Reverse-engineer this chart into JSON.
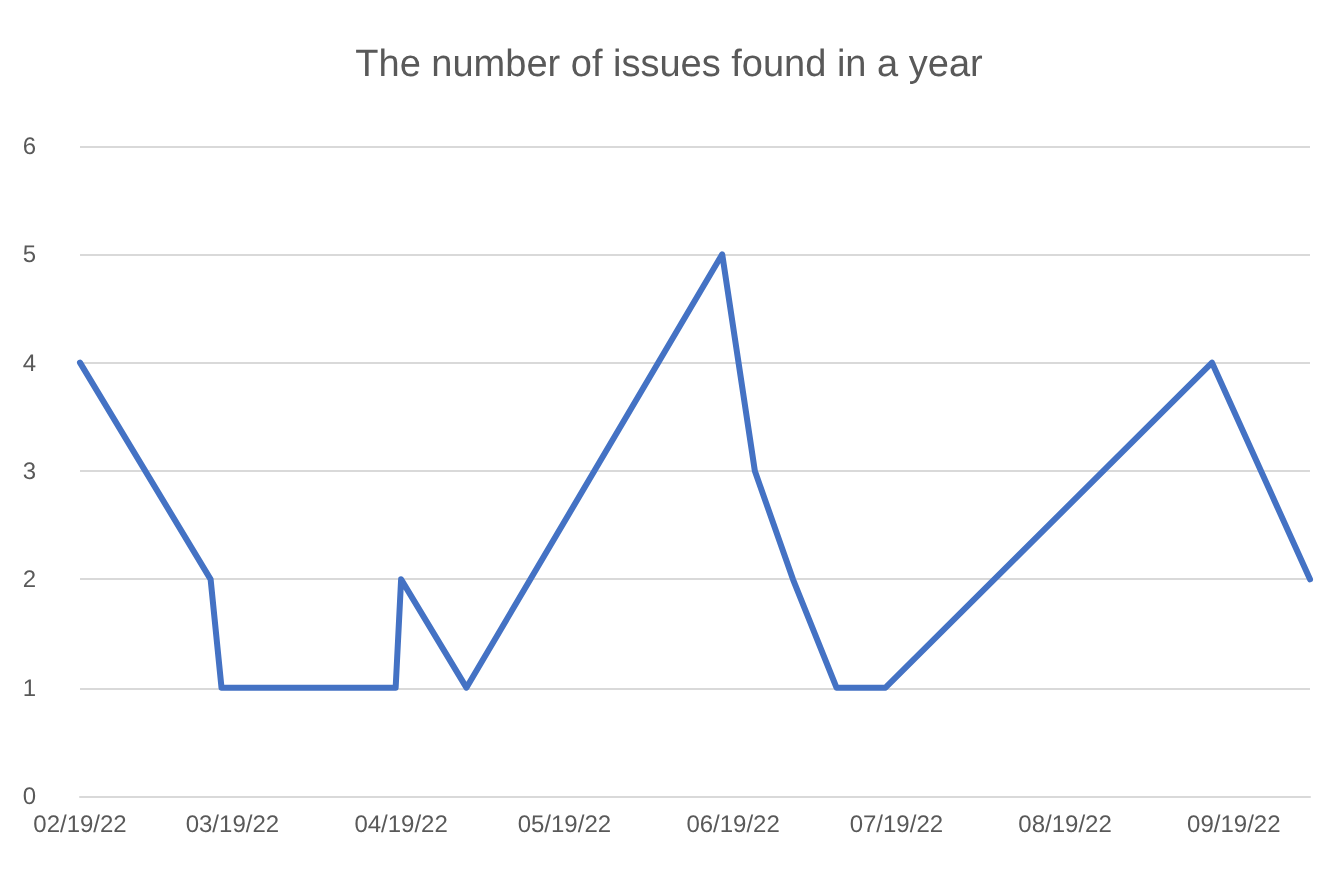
{
  "chart_data": {
    "type": "line",
    "title": "The number of issues found in a year",
    "x": [
      "2022-02-19",
      "2022-03-15",
      "2022-03-17",
      "2022-04-18",
      "2022-04-19",
      "2022-05-01",
      "2022-06-17",
      "2022-06-23",
      "2022-06-30",
      "2022-07-08",
      "2022-07-17",
      "2022-09-15",
      "2022-10-03"
    ],
    "series": [
      {
        "color": "#4472c4",
        "values": [
          4,
          2,
          1,
          1,
          2,
          1,
          5,
          3,
          2,
          1,
          1,
          4,
          2
        ]
      }
    ],
    "xlim": [
      "2022-02-19",
      "2022-10-03"
    ],
    "xticks": [
      {
        "value": "2022-02-19",
        "label": "02/19/22"
      },
      {
        "value": "2022-03-19",
        "label": "03/19/22"
      },
      {
        "value": "2022-04-19",
        "label": "04/19/22"
      },
      {
        "value": "2022-05-19",
        "label": "05/19/22"
      },
      {
        "value": "2022-06-19",
        "label": "06/19/22"
      },
      {
        "value": "2022-07-19",
        "label": "07/19/22"
      },
      {
        "value": "2022-08-19",
        "label": "08/19/22"
      },
      {
        "value": "2022-09-19",
        "label": "09/19/22"
      }
    ],
    "ylim": [
      0,
      6
    ],
    "yticks": [
      0,
      1,
      2,
      3,
      4,
      5,
      6
    ],
    "grid": "y",
    "marker": "none",
    "line_style": "solid"
  }
}
